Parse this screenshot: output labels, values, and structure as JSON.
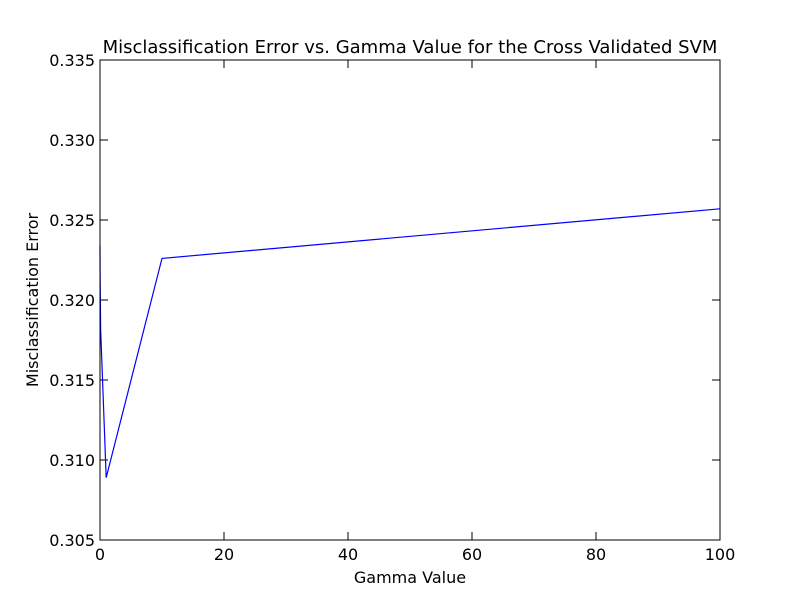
{
  "chart_data": {
    "type": "line",
    "title": "Misclassification Error vs. Gamma Value for the Cross Validated SVM",
    "xlabel": "Gamma Value",
    "ylabel": "Misclassification Error",
    "xlim": [
      0,
      100
    ],
    "ylim": [
      0.305,
      0.335
    ],
    "xticks": [
      0,
      20,
      40,
      60,
      80,
      100
    ],
    "xtick_labels": [
      "0",
      "20",
      "40",
      "60",
      "80",
      "100"
    ],
    "yticks": [
      0.305,
      0.31,
      0.315,
      0.32,
      0.325,
      0.33,
      0.335
    ],
    "ytick_labels": [
      "0.305",
      "0.310",
      "0.315",
      "0.320",
      "0.325",
      "0.330",
      "0.335"
    ],
    "grid": false,
    "legend": "none",
    "series": [
      {
        "color": "#0000ff",
        "x": [
          0.001,
          0.01,
          0.1,
          1,
          10,
          100
        ],
        "y": [
          0.3234,
          0.3219,
          0.3182,
          0.3089,
          0.3226,
          0.3257
        ]
      }
    ]
  }
}
